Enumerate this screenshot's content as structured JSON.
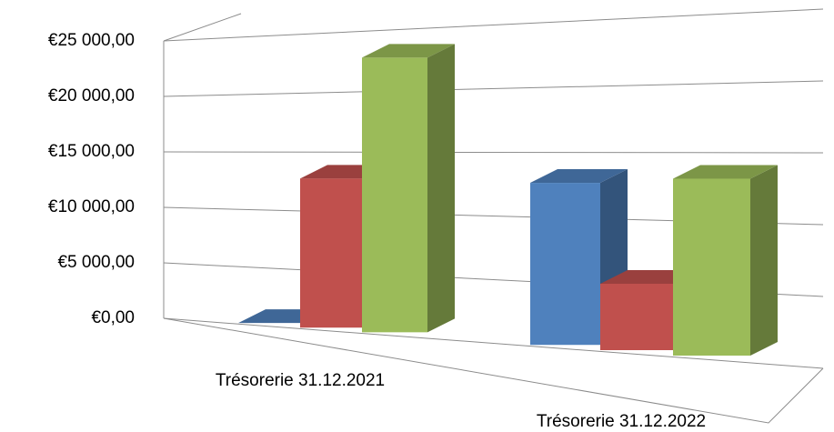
{
  "chart_data": {
    "type": "bar3d",
    "categories": [
      "Trésorerie 31.12.2021",
      "Trésorerie 31.12.2022"
    ],
    "series": [
      {
        "color": "#4f81bd",
        "values": [
          0,
          12500
        ]
      },
      {
        "color": "#c0504d",
        "values": [
          12500,
          5000
        ]
      },
      {
        "color": "#9bbb59",
        "values": [
          22500,
          13000
        ]
      }
    ],
    "ylim": [
      0,
      25000
    ],
    "yticks": [
      {
        "value": 0,
        "label": "€0,00"
      },
      {
        "value": 5000,
        "label": "€5 000,00"
      },
      {
        "value": 10000,
        "label": "€10 000,00"
      },
      {
        "value": 15000,
        "label": "€15 000,00"
      },
      {
        "value": 20000,
        "label": "€20 000,00"
      },
      {
        "value": 25000,
        "label": "€25 000,00"
      }
    ],
    "grid": true
  }
}
